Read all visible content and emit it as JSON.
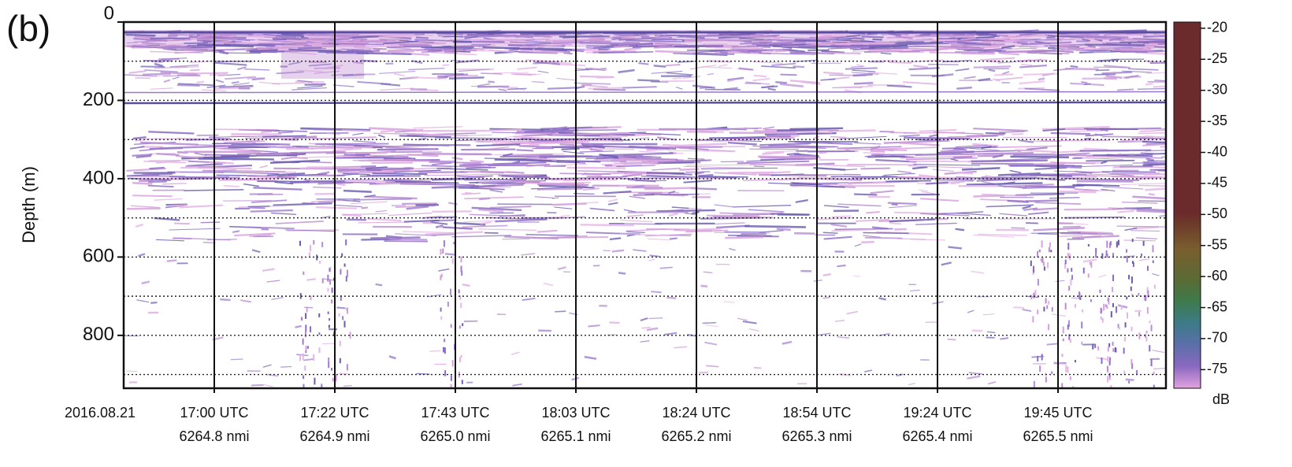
{
  "chart_data": {
    "type": "echogram",
    "panel_label": "(b)",
    "y_label": "Depth (m)",
    "ylim": [
      0,
      935
    ],
    "yticks": [
      0,
      200,
      400,
      600,
      800
    ],
    "grid_depths": [
      100,
      200,
      300,
      400,
      500,
      600,
      700,
      800,
      900
    ],
    "date_label": "2016.08.21",
    "categories": [
      "17:00 UTC",
      "17:22 UTC",
      "17:43 UTC",
      "18:03 UTC",
      "18:24 UTC",
      "18:54 UTC",
      "19:24 UTC",
      "19:45 UTC"
    ],
    "distances": [
      "6264.8 nmi",
      "6264.9 nmi",
      "6265.0 nmi",
      "6265.1 nmi",
      "6265.2 nmi",
      "6265.3 nmi",
      "6265.4 nmi",
      "6265.5 nmi"
    ],
    "colorbar": {
      "label": "dB",
      "clim": [
        -78,
        -19
      ],
      "ticks": [
        -20,
        -25,
        -30,
        -35,
        -40,
        -45,
        -50,
        -55,
        -60,
        -65,
        -70,
        -75
      ]
    }
  }
}
